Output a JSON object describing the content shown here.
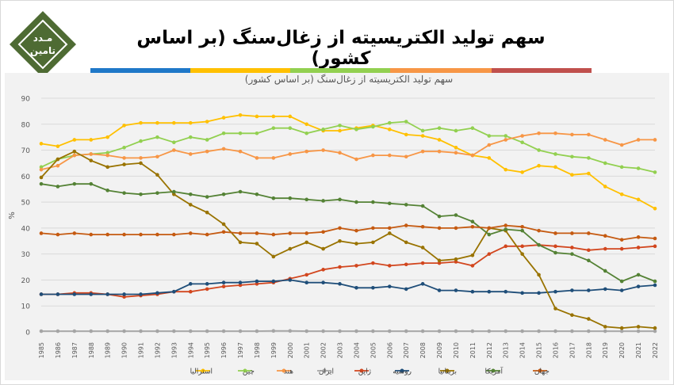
{
  "header": {
    "logo_line1": "مـدد",
    "logo_line2": "تامین",
    "title": "سهم تولید الکتریسیته از زغال‌سنگ (بر اساس کشور)"
  },
  "colors": {
    "logo": "#4e6b33",
    "bar_segments": [
      "#1f78c8",
      "#ffc000",
      "#92d050",
      "#f79646",
      "#c0504d"
    ]
  },
  "chart_data": {
    "type": "line",
    "title": "سهم تولید الکتریسیته از زغال‌سنگ (بر اساس کشور)",
    "ylabel": "%",
    "xlabel": "",
    "ylim": [
      0,
      90
    ],
    "yticks": [
      0,
      10,
      20,
      30,
      40,
      50,
      60,
      70,
      80,
      90
    ],
    "grid": true,
    "legend": "bottom",
    "x": [
      "1985",
      "1986",
      "1987",
      "1988",
      "1989",
      "1990",
      "1991",
      "1992",
      "1993",
      "1994",
      "1995",
      "1996",
      "1997",
      "1998",
      "1999",
      "2000",
      "2001",
      "2002",
      "2003",
      "2004",
      "2005",
      "2006",
      "2007",
      "2008",
      "2009",
      "2010",
      "2011",
      "2012",
      "2013",
      "2014",
      "2015",
      "2016",
      "2017",
      "2018",
      "2019",
      "2020",
      "2021",
      "2022"
    ],
    "series": [
      {
        "name": "استرالیا",
        "color": "#ffc000",
        "values": [
          72.5,
          71.5,
          74,
          74,
          75,
          79.5,
          80.5,
          80.5,
          80.5,
          80.5,
          81,
          82.5,
          83.5,
          83,
          83,
          83,
          80,
          77.5,
          77.5,
          78.5,
          79.5,
          78,
          76,
          75.5,
          74,
          71,
          68,
          67,
          62.5,
          61.5,
          64,
          63.5,
          60.5,
          61,
          56,
          53,
          51,
          47.5
        ]
      },
      {
        "name": "چین",
        "color": "#92d050",
        "values": [
          63.5,
          66.5,
          68,
          68.5,
          69,
          71,
          73.5,
          75,
          73,
          75,
          74,
          76.5,
          76.5,
          76.5,
          78.5,
          78.5,
          76.5,
          78,
          79.5,
          78,
          79,
          80.5,
          81,
          77.5,
          78.5,
          77.5,
          78.5,
          75.5,
          75.5,
          73,
          70,
          68.5,
          67.5,
          67,
          65,
          63.5,
          63,
          61.5
        ]
      },
      {
        "name": "هند",
        "color": "#f79646",
        "values": [
          62.5,
          64,
          68,
          68.5,
          68,
          67,
          67,
          67.5,
          70,
          68.5,
          69.5,
          70.5,
          69.5,
          67,
          67,
          68.5,
          69.5,
          70,
          69,
          66.5,
          68,
          68,
          67.5,
          69.5,
          69.5,
          69,
          68,
          72,
          74,
          75.5,
          76.5,
          76.5,
          76,
          76,
          74,
          72,
          74,
          74
        ]
      },
      {
        "name": "ایران",
        "color": "#a5a5a5",
        "values": [
          0.3,
          0.3,
          0.3,
          0.3,
          0.3,
          0.3,
          0.3,
          0.3,
          0.3,
          0.3,
          0.3,
          0.3,
          0.3,
          0.3,
          0.4,
          0.4,
          0.3,
          0.3,
          0.3,
          0.3,
          0.3,
          0.3,
          0.3,
          0.3,
          0.3,
          0.3,
          0.3,
          0.3,
          0.3,
          0.3,
          0.3,
          0.3,
          0.3,
          0.3,
          0.3,
          0.3,
          0.3,
          0.3
        ]
      },
      {
        "name": "ژاپن",
        "color": "#d2461e",
        "values": [
          14.5,
          14.5,
          15,
          15,
          14.5,
          13.5,
          14,
          14.5,
          15.5,
          15.5,
          16.5,
          17.5,
          18,
          18.5,
          19,
          20.5,
          22,
          24,
          25,
          25.5,
          26.5,
          25.5,
          26,
          26.5,
          26.5,
          27,
          25.5,
          30,
          33,
          33,
          33.5,
          33,
          32.5,
          31.5,
          32,
          32,
          32.5,
          33
        ]
      },
      {
        "name": "روسیه",
        "color": "#1f4e79",
        "values": [
          14.5,
          14.5,
          14.5,
          14.5,
          14.5,
          14.5,
          14.5,
          15,
          15.5,
          18.5,
          18.5,
          19,
          19,
          19.5,
          19.5,
          20,
          19,
          19,
          18.5,
          17,
          17,
          17.5,
          16.5,
          18.5,
          16,
          16,
          15.5,
          15.5,
          15.5,
          15,
          15,
          15.5,
          16,
          16,
          16.5,
          16,
          17.5,
          18
        ]
      },
      {
        "name": "بریتانیا",
        "color": "#997300",
        "values": [
          59.5,
          66.5,
          69.5,
          66,
          63.5,
          64.5,
          65,
          60.5,
          53,
          49,
          46,
          41.5,
          34.5,
          34,
          29,
          32,
          34.5,
          32,
          35,
          34,
          34.5,
          38,
          34.5,
          32.5,
          27.5,
          28,
          29.5,
          40,
          39,
          30,
          22,
          9,
          6.5,
          5,
          2,
          1.5,
          2,
          1.5
        ]
      },
      {
        "name": "آمریکا",
        "color": "#548235",
        "values": [
          57,
          56,
          57,
          57,
          54.5,
          53.5,
          53,
          53.5,
          54,
          53,
          52,
          53,
          54,
          53,
          51.5,
          51.5,
          51,
          50.5,
          51,
          50,
          50,
          49.5,
          49,
          48.5,
          44.5,
          45,
          42.5,
          37.5,
          39.5,
          39,
          33.5,
          30.5,
          30,
          27.5,
          23.5,
          19.5,
          22,
          19.5
        ]
      },
      {
        "name": "جهان",
        "color": "#c55a11",
        "values": [
          38,
          37.5,
          38,
          37.5,
          37.5,
          37.5,
          37.5,
          37.5,
          37.5,
          38,
          37.5,
          38.5,
          38,
          38,
          37.5,
          38,
          38,
          38.5,
          40,
          39,
          40,
          40,
          41,
          40.5,
          40,
          40,
          40.5,
          40,
          41,
          40.5,
          39,
          38,
          38,
          38,
          37,
          35.5,
          36.5,
          36
        ]
      }
    ]
  }
}
